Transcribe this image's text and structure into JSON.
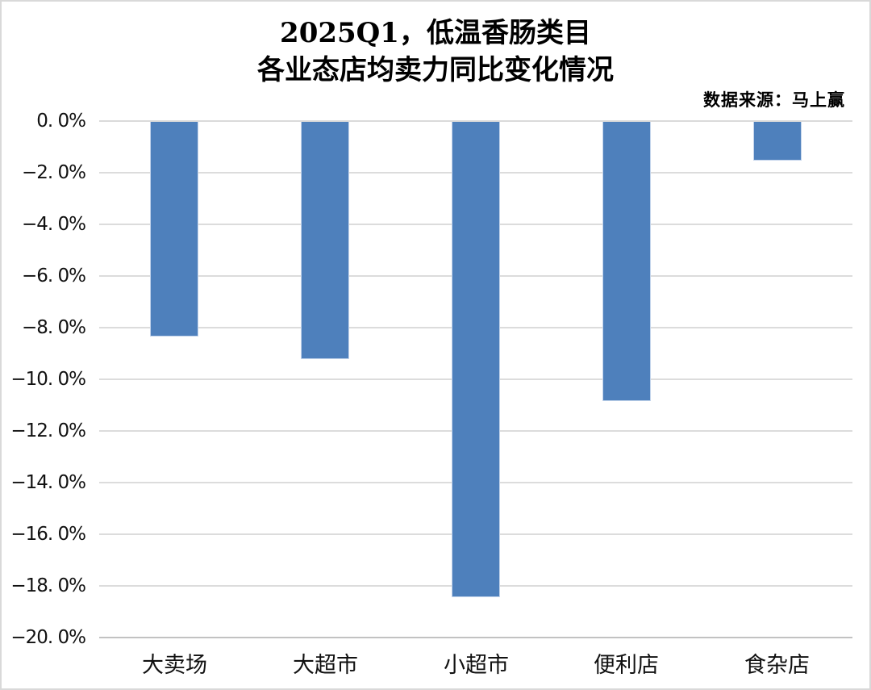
{
  "title": {
    "line1": "2025Q1，低温香肠类目",
    "line2": "各业态店均卖力同比变化情况"
  },
  "source": {
    "text": "数据来源：马上赢"
  },
  "chart_data": {
    "type": "bar",
    "title": "2025Q1，低温香肠类目 各业态店均卖力同比变化情况",
    "categories": [
      "大卖场",
      "大超市",
      "小超市",
      "便利店",
      "食杂店"
    ],
    "values": [
      -8.3,
      -9.2,
      -18.4,
      -10.8,
      -1.5
    ],
    "unit": "%",
    "xlabel": "",
    "ylabel": "",
    "ylim": [
      -20,
      0
    ],
    "y_tick_step": 2,
    "y_ticks": [
      "0. 0%",
      "−2. 0%",
      "−4. 0%",
      "−6. 0%",
      "−8. 0%",
      "−10. 0%",
      "−12. 0%",
      "−14. 0%",
      "−16. 0%",
      "−18. 0%",
      "−20. 0%"
    ],
    "grid": true,
    "legend": false,
    "bar_color": "#4e80bc",
    "bar_border_color": "#c3d4eb",
    "gridline_color": "#dcdcdc",
    "baseline_color": "#c2c2c2"
  }
}
